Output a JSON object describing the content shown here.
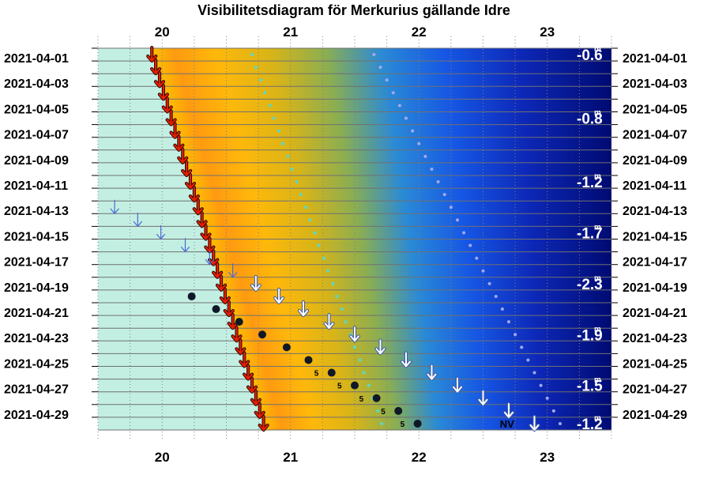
{
  "chart_data": {
    "type": "scatter",
    "title": "Visibilitetsdiagram för Merkurius gällande Idre",
    "x_ticks": [
      "20",
      "21",
      "22",
      "23"
    ],
    "x_range": [
      19.5,
      23.5
    ],
    "dates": [
      "2021-04-01",
      "2021-04-02",
      "2021-04-03",
      "2021-04-04",
      "2021-04-05",
      "2021-04-06",
      "2021-04-07",
      "2021-04-08",
      "2021-04-09",
      "2021-04-10",
      "2021-04-11",
      "2021-04-12",
      "2021-04-13",
      "2021-04-14",
      "2021-04-15",
      "2021-04-16",
      "2021-04-17",
      "2021-04-18",
      "2021-04-19",
      "2021-04-20",
      "2021-04-21",
      "2021-04-22",
      "2021-04-23",
      "2021-04-24",
      "2021-04-25",
      "2021-04-26",
      "2021-04-27",
      "2021-04-28",
      "2021-04-29",
      "2021-04-30"
    ],
    "date_labels": [
      "2021-04-01",
      "2021-04-03",
      "2021-04-05",
      "2021-04-07",
      "2021-04-09",
      "2021-04-11",
      "2021-04-13",
      "2021-04-15",
      "2021-04-17",
      "2021-04-19",
      "2021-04-21",
      "2021-04-23",
      "2021-04-25",
      "2021-04-27",
      "2021-04-29"
    ],
    "magnitudes": [
      {
        "date": "2021-04-01",
        "label": "-0.6"
      },
      {
        "date": "2021-04-06",
        "label": "-0.8"
      },
      {
        "date": "2021-04-11",
        "label": "-1.2"
      },
      {
        "date": "2021-04-15",
        "label": "-1.7"
      },
      {
        "date": "2021-04-19",
        "label": "-2.3"
      },
      {
        "date": "2021-04-23",
        "label": "-1.9"
      },
      {
        "date": "2021-04-27",
        "label": "-1.5"
      },
      {
        "date": "2021-04-30",
        "label": "-1.2"
      }
    ],
    "mag_suffix": "m",
    "sunset": [
      19.92,
      19.95,
      19.98,
      20.01,
      20.04,
      20.07,
      20.1,
      20.13,
      20.16,
      20.19,
      20.22,
      20.25,
      20.28,
      20.31,
      20.34,
      20.37,
      20.4,
      20.43,
      20.46,
      20.49,
      20.52,
      20.55,
      20.58,
      20.61,
      20.64,
      20.67,
      20.7,
      20.73,
      20.76,
      20.79
    ],
    "civil_dusk": [
      20.7,
      20.73,
      20.77,
      20.8,
      20.84,
      20.87,
      20.91,
      20.94,
      20.98,
      21.01,
      21.05,
      21.08,
      21.12,
      21.15,
      21.19,
      21.22,
      21.26,
      21.29,
      21.33,
      21.36,
      21.4,
      21.43,
      21.47,
      21.5,
      21.54,
      21.57,
      21.61,
      21.64,
      21.68,
      21.71
    ],
    "nautical_dusk": [
      21.65,
      21.7,
      21.75,
      21.8,
      21.85,
      21.9,
      21.95,
      22.0,
      22.05,
      22.1,
      22.15,
      22.2,
      22.25,
      22.3,
      22.35,
      22.4,
      22.45,
      22.5,
      22.55,
      22.6,
      22.65,
      22.7,
      22.75,
      22.8,
      22.85,
      22.9,
      22.95,
      23.0,
      23.05,
      23.1
    ],
    "mercury_set": [
      {
        "date": "2021-04-13",
        "x": 19.63
      },
      {
        "date": "2021-04-14",
        "x": 19.81
      },
      {
        "date": "2021-04-15",
        "x": 19.99
      },
      {
        "date": "2021-04-16",
        "x": 20.18
      },
      {
        "date": "2021-04-17",
        "x": 20.37
      },
      {
        "date": "2021-04-18",
        "x": 20.55
      },
      {
        "date": "2021-04-19",
        "x": 20.73
      },
      {
        "date": "2021-04-20",
        "x": 20.91
      },
      {
        "date": "2021-04-21",
        "x": 21.1
      },
      {
        "date": "2021-04-22",
        "x": 21.3
      },
      {
        "date": "2021-04-23",
        "x": 21.5
      },
      {
        "date": "2021-04-24",
        "x": 21.7
      },
      {
        "date": "2021-04-25",
        "x": 21.9
      },
      {
        "date": "2021-04-26",
        "x": 22.1
      },
      {
        "date": "2021-04-27",
        "x": 22.3
      },
      {
        "date": "2021-04-28",
        "x": 22.5
      },
      {
        "date": "2021-04-29",
        "x": 22.7
      },
      {
        "date": "2021-04-30",
        "x": 22.9
      }
    ],
    "mercury_altitude_points": [
      {
        "date": "2021-04-20",
        "x": 20.23,
        "label": ""
      },
      {
        "date": "2021-04-21",
        "x": 20.42,
        "label": ""
      },
      {
        "date": "2021-04-22",
        "x": 20.6,
        "label": ""
      },
      {
        "date": "2021-04-23",
        "x": 20.78,
        "label": ""
      },
      {
        "date": "2021-04-24",
        "x": 20.97,
        "label": ""
      },
      {
        "date": "2021-04-25",
        "x": 21.14,
        "label": ""
      },
      {
        "date": "2021-04-26",
        "x": 21.32,
        "label": "5"
      },
      {
        "date": "2021-04-27",
        "x": 21.5,
        "label": "5"
      },
      {
        "date": "2021-04-28",
        "x": 21.67,
        "label": "5"
      },
      {
        "date": "2021-04-29",
        "x": 21.84,
        "label": "5"
      },
      {
        "date": "2021-04-30",
        "x": 21.99,
        "label": "5"
      }
    ],
    "nv_label": {
      "date": "2021-04-30",
      "x": 22.68,
      "text": "NV"
    },
    "colors": {
      "day": "#c3efe3",
      "sunset_arrow": "#e81e00",
      "set_arrow_early": "#4a6ad8",
      "set_arrow_late": "#ffffff",
      "alt_point": "#101828",
      "dusk_dot": "#5ad8c8",
      "night_dot": "#a4a8ec",
      "night_deep": "#000a72"
    },
    "grid": true
  }
}
